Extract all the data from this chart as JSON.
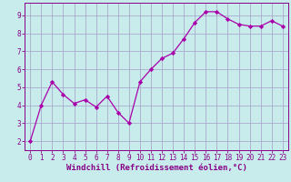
{
  "x": [
    0,
    1,
    2,
    3,
    4,
    5,
    6,
    7,
    8,
    9,
    10,
    11,
    12,
    13,
    14,
    15,
    16,
    17,
    18,
    19,
    20,
    21,
    22,
    23
  ],
  "y": [
    2.0,
    4.0,
    5.3,
    4.6,
    4.1,
    4.3,
    3.9,
    4.5,
    3.6,
    3.0,
    5.3,
    6.0,
    6.6,
    6.9,
    7.7,
    8.6,
    9.2,
    9.2,
    8.8,
    8.5,
    8.4,
    8.4,
    8.7,
    8.4
  ],
  "line_color": "#aa00aa",
  "marker": "D",
  "marker_size": 2.2,
  "bg_color": "#c8ecec",
  "grid_color": "#aaaacc",
  "xlabel": "Windchill (Refroidissement éolien,°C)",
  "xlim": [
    -0.5,
    23.5
  ],
  "ylim": [
    1.5,
    9.7
  ],
  "yticks": [
    2,
    3,
    4,
    5,
    6,
    7,
    8,
    9
  ],
  "xticks": [
    0,
    1,
    2,
    3,
    4,
    5,
    6,
    7,
    8,
    9,
    10,
    11,
    12,
    13,
    14,
    15,
    16,
    17,
    18,
    19,
    20,
    21,
    22,
    23
  ],
  "tick_fontsize": 5.5,
  "xlabel_fontsize": 6.5,
  "axis_color": "#880088"
}
